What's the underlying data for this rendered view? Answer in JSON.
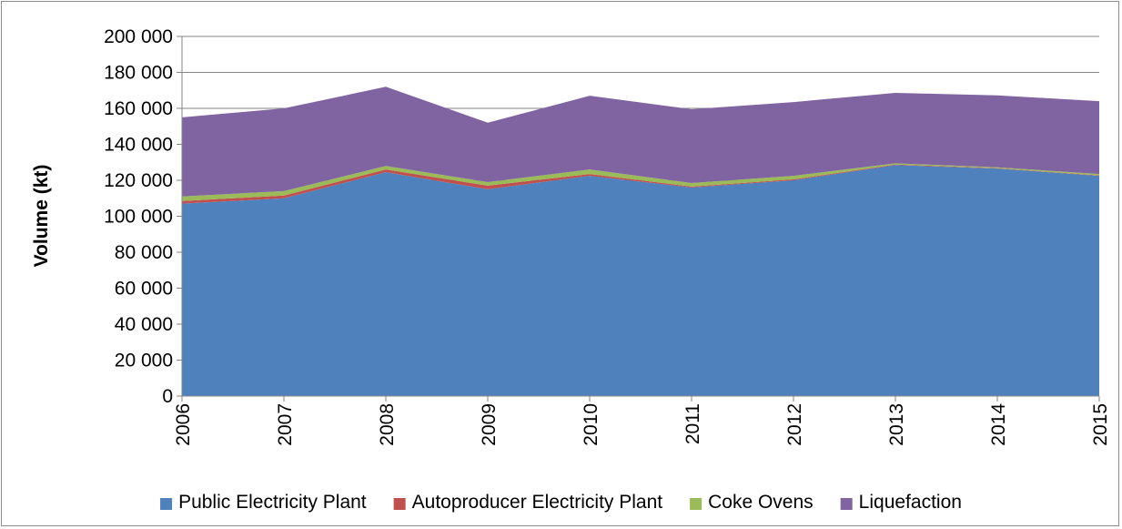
{
  "chart_data": {
    "type": "area",
    "stacked": true,
    "title": "",
    "xlabel": "",
    "ylabel": "Volume (kt)",
    "ylim": [
      0,
      200000
    ],
    "ytick_step": 20000,
    "yticks": [
      "0",
      "20 000",
      "40 000",
      "60 000",
      "80 000",
      "100 000",
      "120 000",
      "140 000",
      "160 000",
      "180 000",
      "200 000"
    ],
    "x": [
      "2006",
      "2007",
      "2008",
      "2009",
      "2010",
      "2011",
      "2012",
      "2013",
      "2014",
      "2015"
    ],
    "grid": true,
    "legend_position": "bottom",
    "series": [
      {
        "name": "Public Electricity Plant",
        "color": "#4f81bd",
        "values": [
          107000,
          110000,
          124500,
          115000,
          122500,
          116000,
          120000,
          128500,
          126500,
          122500
        ]
      },
      {
        "name": "Autoproducer Electricity Plant",
        "color": "#c0504d",
        "values": [
          1500,
          1500,
          1500,
          2000,
          1000,
          500,
          500,
          300,
          200,
          200
        ]
      },
      {
        "name": "Coke Ovens",
        "color": "#9bbb59",
        "values": [
          2500,
          2500,
          2000,
          2000,
          2500,
          2000,
          2000,
          600,
          500,
          800
        ]
      },
      {
        "name": "Liquefaction",
        "color": "#8064a2",
        "values": [
          44000,
          46000,
          44000,
          33000,
          41000,
          41000,
          41000,
          39200,
          40000,
          40500
        ]
      }
    ]
  }
}
